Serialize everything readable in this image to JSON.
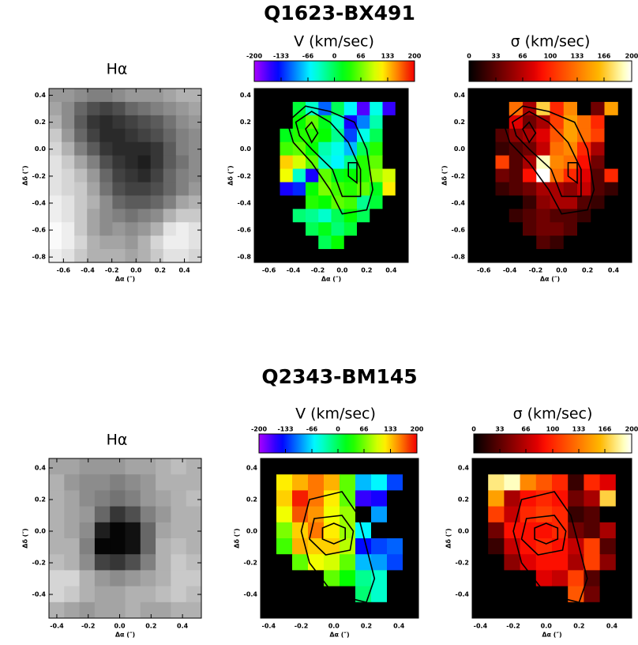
{
  "titles": [
    "Q1623-BX491",
    "Q2343-BM145"
  ],
  "chart_data": [
    {
      "type": "heatmap",
      "title": "Hα",
      "xlabel": "Δα (″)",
      "ylabel": "Δδ (″)",
      "colormap": "gray",
      "xlim": [
        -0.72,
        0.54
      ],
      "ylim": [
        -0.84,
        0.45
      ],
      "zlim": [
        0,
        1
      ],
      "xticks": [
        -0.6,
        -0.4,
        -0.2,
        {
          "value": 0,
          "label": "0.0"
        },
        0.2,
        0.4
      ],
      "yticks": [
        0.4,
        0.2,
        {
          "value": 0,
          "label": "0.0"
        },
        -0.2,
        -0.4,
        -0.6,
        -0.8
      ],
      "z": [
        [
          0.4,
          0.4,
          0.45,
          0.5,
          0.5,
          0.45,
          0.4,
          0.4,
          0.4,
          0.35,
          0.3,
          0.3
        ],
        [
          0.35,
          0.45,
          0.6,
          0.7,
          0.75,
          0.7,
          0.6,
          0.55,
          0.5,
          0.45,
          0.4,
          0.35
        ],
        [
          0.3,
          0.45,
          0.65,
          0.8,
          0.85,
          0.8,
          0.75,
          0.7,
          0.65,
          0.55,
          0.45,
          0.4
        ],
        [
          0.2,
          0.4,
          0.6,
          0.75,
          0.85,
          0.85,
          0.8,
          0.75,
          0.7,
          0.6,
          0.5,
          0.45
        ],
        [
          0.15,
          0.3,
          0.5,
          0.65,
          0.8,
          0.85,
          0.85,
          0.85,
          0.8,
          0.65,
          0.5,
          0.45
        ],
        [
          0.1,
          0.2,
          0.35,
          0.5,
          0.7,
          0.8,
          0.85,
          0.9,
          0.8,
          0.65,
          0.55,
          0.45
        ],
        [
          0.1,
          0.15,
          0.25,
          0.4,
          0.6,
          0.75,
          0.8,
          0.85,
          0.75,
          0.6,
          0.5,
          0.45
        ],
        [
          0.1,
          0.15,
          0.2,
          0.35,
          0.55,
          0.7,
          0.75,
          0.75,
          0.7,
          0.6,
          0.5,
          0.4
        ],
        [
          0.05,
          0.1,
          0.2,
          0.3,
          0.45,
          0.6,
          0.65,
          0.65,
          0.6,
          0.5,
          0.35,
          0.3
        ],
        [
          0.05,
          0.1,
          0.2,
          0.35,
          0.45,
          0.5,
          0.55,
          0.5,
          0.45,
          0.3,
          0.2,
          0.2
        ],
        [
          0,
          0.05,
          0.2,
          0.35,
          0.45,
          0.4,
          0.45,
          0.4,
          0.3,
          0.1,
          0.05,
          0.1
        ],
        [
          0,
          0.05,
          0.15,
          0.3,
          0.35,
          0.35,
          0.4,
          0.3,
          0.15,
          0.05,
          0.05,
          0.1
        ],
        [
          0.05,
          0.1,
          0.2,
          0.3,
          0.3,
          0.3,
          0.35,
          0.3,
          0.2,
          0.1,
          0.1,
          0.15
        ]
      ]
    },
    {
      "type": "heatmap",
      "title": "V (km/sec)",
      "xlabel": "Δα (″)",
      "ylabel": "Δδ (″)",
      "colormap": "rainbow",
      "contours": true,
      "xlim": [
        -0.72,
        0.54
      ],
      "ylim": [
        -0.84,
        0.45
      ],
      "zlim": [
        -200,
        200
      ],
      "cticks": [
        -200,
        -133,
        -66,
        0,
        66,
        133,
        200
      ],
      "xticks": [
        -0.6,
        -0.4,
        -0.2,
        {
          "value": 0,
          "label": "0.0"
        },
        0.2,
        0.4
      ],
      "yticks": [
        0.4,
        0.2,
        {
          "value": 0,
          "label": "0.0"
        },
        -0.2,
        -0.4,
        -0.6,
        -0.8
      ],
      "z": [
        [
          null,
          null,
          null,
          null,
          null,
          null,
          null,
          null,
          null,
          null,
          null,
          null
        ],
        [
          null,
          null,
          null,
          10,
          -40,
          -110,
          0,
          -60,
          -170,
          -50,
          -160,
          null
        ],
        [
          null,
          null,
          null,
          30,
          60,
          20,
          -40,
          -150,
          -100,
          -30,
          null,
          null
        ],
        [
          null,
          null,
          20,
          40,
          40,
          30,
          -20,
          -120,
          -50,
          0,
          null,
          null
        ],
        [
          null,
          null,
          50,
          60,
          30,
          -30,
          -50,
          -80,
          0,
          40,
          null,
          null
        ],
        [
          null,
          null,
          130,
          100,
          60,
          -40,
          -60,
          -20,
          40,
          60,
          null,
          null
        ],
        [
          null,
          null,
          110,
          -40,
          -150,
          60,
          20,
          30,
          40,
          80,
          100,
          null
        ],
        [
          null,
          null,
          -150,
          -130,
          30,
          70,
          50,
          40,
          60,
          20,
          120,
          null
        ],
        [
          null,
          null,
          null,
          null,
          40,
          30,
          60,
          50,
          -20,
          10,
          null,
          null
        ],
        [
          null,
          null,
          null,
          -10,
          -20,
          -40,
          0,
          30,
          0,
          null,
          null,
          null
        ],
        [
          null,
          null,
          null,
          null,
          0,
          20,
          -10,
          10,
          null,
          null,
          null,
          null
        ],
        [
          null,
          null,
          null,
          null,
          null,
          0,
          30,
          null,
          null,
          null,
          null,
          null
        ],
        [
          null,
          null,
          null,
          null,
          null,
          null,
          null,
          null,
          null,
          null,
          null,
          null
        ]
      ]
    },
    {
      "type": "heatmap",
      "title": "σ (km/sec)",
      "xlabel": "Δα (″)",
      "ylabel": "Δδ (″)",
      "colormap": "hot",
      "contours": true,
      "xlim": [
        -0.72,
        0.54
      ],
      "ylim": [
        -0.84,
        0.45
      ],
      "zlim": [
        0,
        200
      ],
      "cticks": [
        0,
        33,
        66,
        100,
        133,
        166,
        200
      ],
      "xticks": [
        -0.6,
        -0.4,
        -0.2,
        {
          "value": 0,
          "label": "0.0"
        },
        0.2,
        0.4
      ],
      "yticks": [
        0.4,
        0.2,
        {
          "value": 0,
          "label": "0.0"
        },
        -0.2,
        -0.4,
        -0.6,
        -0.8
      ],
      "z": [
        [
          null,
          null,
          null,
          null,
          null,
          null,
          null,
          null,
          null,
          null,
          null,
          null
        ],
        [
          null,
          null,
          null,
          130,
          60,
          170,
          100,
          140,
          null,
          40,
          150,
          null
        ],
        [
          null,
          null,
          null,
          80,
          40,
          60,
          110,
          150,
          130,
          100,
          null,
          null
        ],
        [
          null,
          null,
          30,
          50,
          60,
          80,
          120,
          150,
          130,
          110,
          null,
          null
        ],
        [
          null,
          null,
          20,
          30,
          40,
          70,
          130,
          140,
          100,
          60,
          null,
          null
        ],
        [
          null,
          null,
          110,
          30,
          60,
          190,
          140,
          130,
          90,
          40,
          null,
          null
        ],
        [
          null,
          null,
          40,
          30,
          90,
          200,
          130,
          100,
          80,
          30,
          100,
          null
        ],
        [
          null,
          null,
          20,
          30,
          40,
          60,
          60,
          50,
          70,
          30,
          20,
          null
        ],
        [
          null,
          null,
          null,
          null,
          20,
          50,
          60,
          60,
          30,
          20,
          null,
          null
        ],
        [
          null,
          null,
          null,
          20,
          30,
          40,
          30,
          30,
          20,
          null,
          null,
          null
        ],
        [
          null,
          null,
          null,
          null,
          30,
          40,
          40,
          30,
          null,
          null,
          null,
          null
        ],
        [
          null,
          null,
          null,
          null,
          null,
          30,
          20,
          null,
          null,
          null,
          null,
          null
        ],
        [
          null,
          null,
          null,
          null,
          null,
          null,
          null,
          null,
          null,
          null,
          null,
          null
        ]
      ]
    },
    {
      "type": "heatmap",
      "title": "Hα",
      "xlabel": "Δα (″)",
      "ylabel": "Δδ (″)",
      "colormap": "gray",
      "xlim": [
        -0.45,
        0.52
      ],
      "ylim": [
        -0.55,
        0.46
      ],
      "zlim": [
        0,
        1
      ],
      "xticks": [
        -0.4,
        -0.2,
        {
          "value": 0,
          "label": "0.0"
        },
        0.2,
        0.4
      ],
      "yticks": [
        0.4,
        0.2,
        {
          "value": 0,
          "label": "0.0"
        },
        -0.2,
        -0.4
      ],
      "z": [
        [
          0.35,
          0.35,
          0.4,
          0.4,
          0.4,
          0.35,
          0.35,
          0.3,
          0.25,
          0.3
        ],
        [
          0.3,
          0.4,
          0.45,
          0.45,
          0.5,
          0.45,
          0.4,
          0.3,
          0.3,
          0.3
        ],
        [
          0.3,
          0.35,
          0.45,
          0.5,
          0.55,
          0.5,
          0.4,
          0.35,
          0.3,
          0.25
        ],
        [
          0.3,
          0.35,
          0.4,
          0.6,
          0.8,
          0.7,
          0.5,
          0.4,
          0.3,
          0.3
        ],
        [
          0.3,
          0.35,
          0.45,
          0.9,
          1,
          0.95,
          0.6,
          0.35,
          0.3,
          0.3
        ],
        [
          0.3,
          0.3,
          0.5,
          1,
          1,
          0.95,
          0.6,
          0.3,
          0.25,
          0.3
        ],
        [
          0.25,
          0.3,
          0.45,
          0.75,
          0.8,
          0.7,
          0.5,
          0.3,
          0.2,
          0.25
        ],
        [
          0.15,
          0.15,
          0.3,
          0.4,
          0.45,
          0.4,
          0.35,
          0.3,
          0.2,
          0.2
        ],
        [
          0.15,
          0.2,
          0.3,
          0.35,
          0.35,
          0.3,
          0.3,
          0.25,
          0.2,
          0.25
        ],
        [
          0.3,
          0.35,
          0.4,
          0.35,
          0.35,
          0.3,
          0.35,
          0.35,
          0.3,
          0.3
        ]
      ]
    },
    {
      "type": "heatmap",
      "title": "V (km/sec)",
      "xlabel": "Δα (″)",
      "ylabel": "Δδ (″)",
      "colormap": "rainbow",
      "contours": true,
      "xlim": [
        -0.45,
        0.52
      ],
      "ylim": [
        -0.55,
        0.46
      ],
      "zlim": [
        -200,
        200
      ],
      "cticks": [
        -200,
        -133,
        -66,
        0,
        66,
        133,
        200
      ],
      "xticks": [
        -0.4,
        -0.2,
        {
          "value": 0,
          "label": "0.0"
        },
        0.2,
        0.4
      ],
      "yticks": [
        0.4,
        0.2,
        {
          "value": 0,
          "label": "0.0"
        },
        -0.2,
        -0.4
      ],
      "z": [
        [
          null,
          null,
          null,
          null,
          null,
          null,
          null,
          null,
          null,
          null
        ],
        [
          null,
          120,
          140,
          160,
          140,
          60,
          -80,
          -60,
          -120,
          null
        ],
        [
          null,
          130,
          190,
          160,
          120,
          60,
          -160,
          -150,
          null,
          null
        ],
        [
          null,
          110,
          170,
          150,
          110,
          80,
          null,
          -90,
          null,
          null
        ],
        [
          null,
          70,
          130,
          160,
          120,
          80,
          -60,
          null,
          null,
          null
        ],
        [
          null,
          50,
          140,
          130,
          130,
          90,
          -140,
          -120,
          -110,
          null
        ],
        [
          null,
          null,
          60,
          110,
          100,
          60,
          -80,
          -90,
          -120,
          null
        ],
        [
          null,
          null,
          null,
          null,
          60,
          30,
          -20,
          -40,
          null,
          null
        ],
        [
          null,
          null,
          null,
          null,
          null,
          null,
          -10,
          -40,
          null,
          null
        ],
        [
          null,
          null,
          null,
          null,
          null,
          null,
          null,
          null,
          null,
          null
        ]
      ]
    },
    {
      "type": "heatmap",
      "title": "σ (km/sec)",
      "xlabel": "Δα (″)",
      "ylabel": "Δδ (″)",
      "colormap": "hot",
      "contours": true,
      "xlim": [
        -0.45,
        0.52
      ],
      "ylim": [
        -0.55,
        0.46
      ],
      "zlim": [
        0,
        200
      ],
      "cticks": [
        0,
        33,
        66,
        100,
        133,
        166,
        200
      ],
      "xticks": [
        -0.4,
        -0.2,
        {
          "value": 0,
          "label": "0.0"
        },
        0.2,
        0.4
      ],
      "yticks": [
        0.4,
        0.2,
        {
          "value": 0,
          "label": "0.0"
        },
        -0.2,
        -0.4
      ],
      "z": [
        [
          null,
          null,
          null,
          null,
          null,
          null,
          null,
          null,
          null,
          null
        ],
        [
          null,
          180,
          190,
          140,
          120,
          100,
          20,
          100,
          80,
          null
        ],
        [
          null,
          150,
          60,
          90,
          100,
          90,
          40,
          60,
          170,
          null
        ],
        [
          null,
          110,
          70,
          100,
          110,
          100,
          20,
          30,
          null,
          null
        ],
        [
          null,
          40,
          90,
          90,
          90,
          100,
          40,
          30,
          60,
          null
        ],
        [
          null,
          20,
          70,
          90,
          100,
          90,
          70,
          110,
          30,
          null
        ],
        [
          null,
          null,
          50,
          80,
          90,
          90,
          60,
          110,
          50,
          null
        ],
        [
          null,
          null,
          null,
          null,
          80,
          70,
          110,
          30,
          null,
          null
        ],
        [
          null,
          null,
          null,
          null,
          null,
          null,
          120,
          40,
          null,
          null
        ],
        [
          null,
          null,
          null,
          null,
          null,
          null,
          null,
          null,
          null,
          null
        ]
      ]
    }
  ]
}
